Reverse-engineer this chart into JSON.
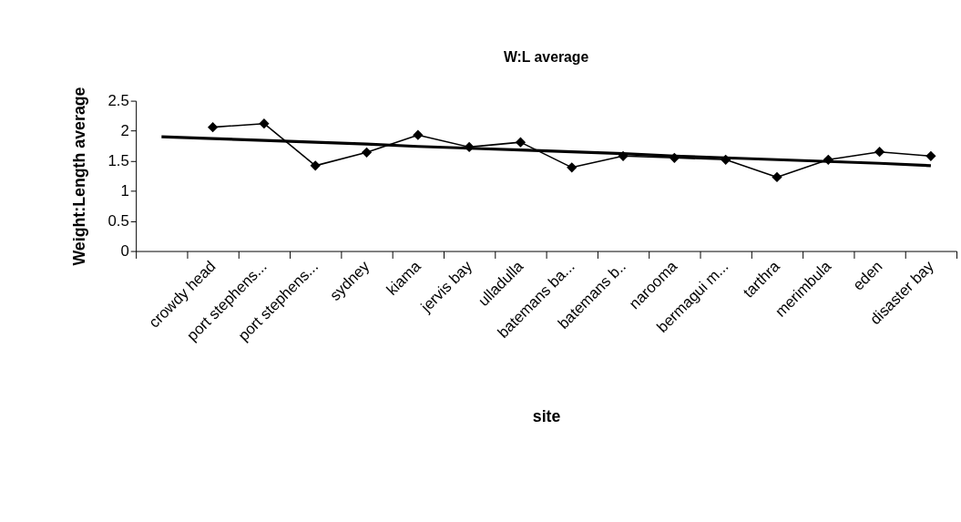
{
  "chart_data": {
    "type": "line",
    "title": "W:L average",
    "xlabel": "site",
    "ylabel": "Weight:Length average",
    "categories": [
      null,
      "crowdy head",
      "port stephens...",
      "port stephens...",
      "sydney",
      "kiama",
      "jervis bay",
      "ulladulla",
      "batemans ba...",
      "batemans b..",
      "narooma",
      "bermagui m...",
      "tarthra",
      "merimbula",
      "eden",
      "disaster bay"
    ],
    "series": [
      {
        "color": "#000000",
        "marker": "diamond",
        "values": [
          null,
          2.06,
          2.12,
          1.42,
          1.64,
          1.93,
          1.73,
          1.81,
          1.39,
          1.58,
          1.55,
          1.52,
          1.23,
          1.52,
          1.65,
          1.58
        ]
      },
      {
        "type": "line",
        "color": "#000000",
        "marker": "none",
        "values": [
          1.9,
          1.87,
          1.84,
          1.81,
          1.78,
          1.74,
          1.71,
          1.68,
          1.65,
          1.62,
          1.58,
          1.55,
          1.52,
          1.49,
          1.46,
          1.42
        ]
      }
    ],
    "ylim": [
      0,
      2.5
    ],
    "yticks": [
      0,
      0.5,
      1,
      1.5,
      2,
      2.5
    ],
    "grid": false,
    "line_style": "solid"
  }
}
